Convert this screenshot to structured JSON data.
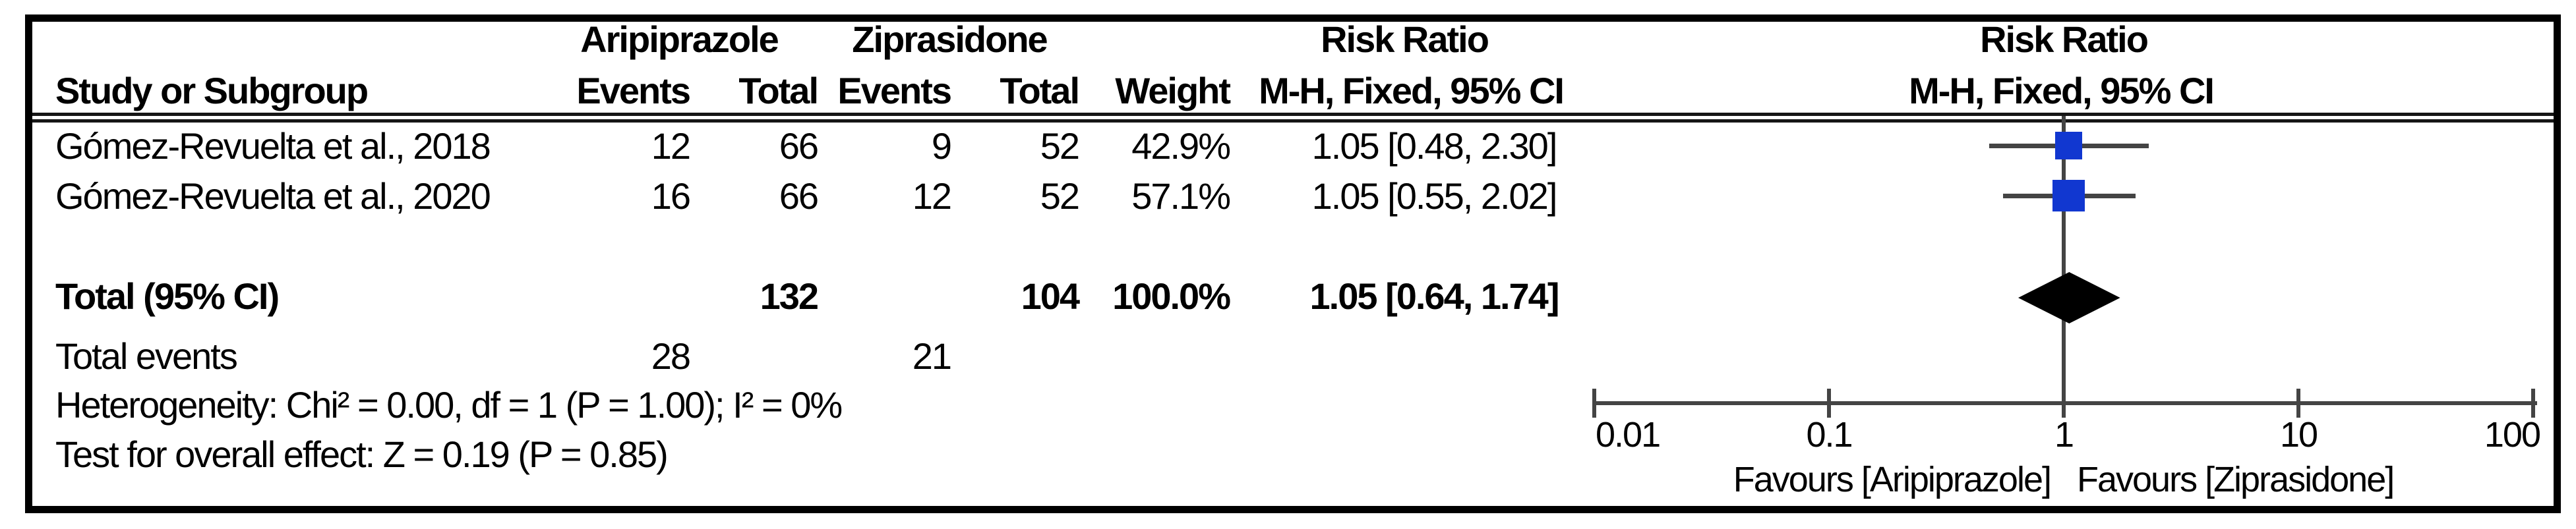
{
  "figure": {
    "group1_header": "Aripiprazole",
    "group2_header": "Ziprasidone",
    "risk_ratio_header_left": "Risk Ratio",
    "risk_ratio_header_right": "Risk Ratio",
    "method_header_left": "M-H, Fixed, 95% CI",
    "method_header_right": "M-H, Fixed, 95% CI",
    "study_col_header": "Study or Subgroup",
    "events_col_header_1": "Events",
    "total_col_header_1": "Total",
    "events_col_header_2": "Events",
    "total_col_header_2": "Total",
    "weight_col_header": "Weight",
    "studies": [
      {
        "name": "Gómez-Revuelta et al., 2018",
        "events1": "12",
        "total1": "66",
        "events2": "9",
        "total2": "52",
        "weight": "42.9%",
        "ci_text": "1.05 [0.48, 2.30]"
      },
      {
        "name": "Gómez-Revuelta et al., 2020",
        "events1": "16",
        "total1": "66",
        "events2": "12",
        "total2": "52",
        "weight": "57.1%",
        "ci_text": "1.05 [0.55, 2.02]"
      }
    ],
    "total_row": {
      "label": "Total (95% CI)",
      "total1": "132",
      "total2": "104",
      "weight": "100.0%",
      "ci_text": "1.05 [0.64, 1.74]"
    },
    "total_events_row": {
      "label": "Total events",
      "events1": "28",
      "events2": "21"
    },
    "heterogeneity_line": "Heterogeneity: Chi² = 0.00, df = 1 (P = 1.00); I² = 0%",
    "overall_effect_line": "Test for overall effect: Z = 0.19 (P = 0.85)",
    "axis_tick_labels": [
      "0.01",
      "0.1",
      "1",
      "10",
      "100"
    ],
    "favours_left": "Favours [Aripiprazole]",
    "favours_right": "Favours [Ziprasidone]",
    "colors": {
      "marker_blue": "#1137d0",
      "line_gray": "#444444",
      "text_black": "#000000"
    }
  },
  "chart_data": {
    "type": "forest",
    "title": "Risk Ratio",
    "effect_measure": "M-H, Fixed, 95% CI",
    "x_scale": "log",
    "x_ticks": [
      0.01,
      0.1,
      1,
      10,
      100
    ],
    "x_range": [
      0.01,
      100
    ],
    "null_line": 1,
    "studies": [
      {
        "name": "Gómez-Revuelta et al., 2018",
        "events_aripiprazole": 12,
        "total_aripiprazole": 66,
        "events_ziprasidone": 9,
        "total_ziprasidone": 52,
        "weight_pct": 42.9,
        "rr": 1.05,
        "ci_low": 0.48,
        "ci_high": 2.3
      },
      {
        "name": "Gómez-Revuelta et al., 2020",
        "events_aripiprazole": 16,
        "total_aripiprazole": 66,
        "events_ziprasidone": 12,
        "total_ziprasidone": 52,
        "weight_pct": 57.1,
        "rr": 1.05,
        "ci_low": 0.55,
        "ci_high": 2.02
      }
    ],
    "total": {
      "label": "Total (95% CI)",
      "rr": 1.05,
      "ci_low": 0.64,
      "ci_high": 1.74,
      "weight_pct": 100.0,
      "total_aripiprazole": 132,
      "total_ziprasidone": 104,
      "events_aripiprazole": 28,
      "events_ziprasidone": 21
    },
    "heterogeneity": {
      "chi2": 0.0,
      "df": 1,
      "p": 1.0,
      "i2_pct": 0
    },
    "overall_effect": {
      "z": 0.19,
      "p": 0.85
    },
    "favours": [
      "Favours [Aripiprazole]",
      "Favours [Ziprasidone]"
    ],
    "legend_position": "none",
    "grid": false
  }
}
